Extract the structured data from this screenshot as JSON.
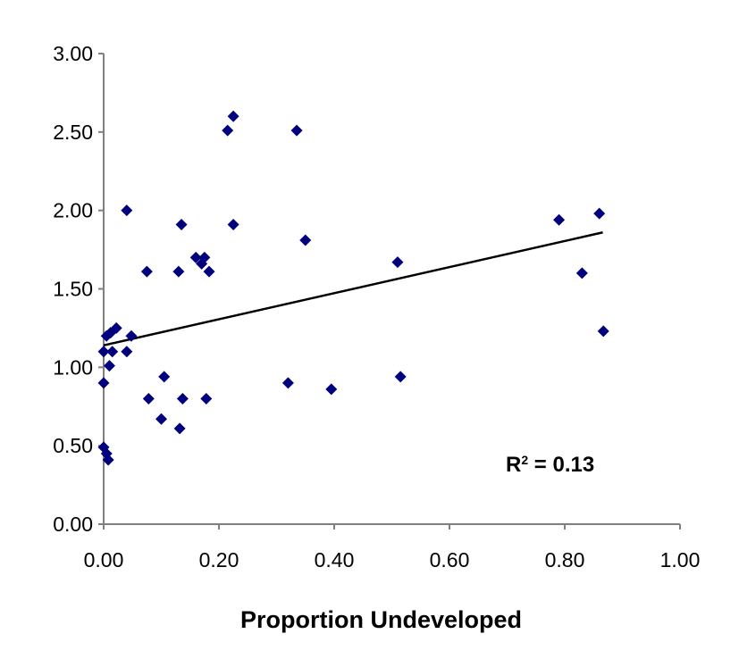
{
  "chart_data": {
    "type": "scatter",
    "title": "",
    "xlabel": "Proportion Undeveloped",
    "ylabel": "",
    "xlim": [
      0,
      1
    ],
    "ylim": [
      0,
      3
    ],
    "xticks": [
      "0.00",
      "0.20",
      "0.40",
      "0.60",
      "0.80",
      "1.00"
    ],
    "yticks": [
      "0.00",
      "0.50",
      "1.00",
      "1.50",
      "2.00",
      "2.50",
      "3.00"
    ],
    "grid": false,
    "marker_color": "#00007F",
    "points": [
      {
        "x": 0.0,
        "y": 1.1
      },
      {
        "x": 0.0,
        "y": 0.9
      },
      {
        "x": 0.0,
        "y": 0.49
      },
      {
        "x": 0.005,
        "y": 0.45
      },
      {
        "x": 0.008,
        "y": 0.41
      },
      {
        "x": 0.005,
        "y": 1.2
      },
      {
        "x": 0.01,
        "y": 1.01
      },
      {
        "x": 0.012,
        "y": 1.22
      },
      {
        "x": 0.015,
        "y": 1.1
      },
      {
        "x": 0.022,
        "y": 1.25
      },
      {
        "x": 0.04,
        "y": 1.1
      },
      {
        "x": 0.04,
        "y": 2.0
      },
      {
        "x": 0.048,
        "y": 1.2
      },
      {
        "x": 0.075,
        "y": 1.61
      },
      {
        "x": 0.078,
        "y": 0.8
      },
      {
        "x": 0.1,
        "y": 0.67
      },
      {
        "x": 0.105,
        "y": 0.94
      },
      {
        "x": 0.13,
        "y": 1.61
      },
      {
        "x": 0.132,
        "y": 0.61
      },
      {
        "x": 0.135,
        "y": 1.91
      },
      {
        "x": 0.137,
        "y": 0.8
      },
      {
        "x": 0.16,
        "y": 1.7
      },
      {
        "x": 0.17,
        "y": 1.66
      },
      {
        "x": 0.175,
        "y": 1.7
      },
      {
        "x": 0.178,
        "y": 0.8
      },
      {
        "x": 0.183,
        "y": 1.61
      },
      {
        "x": 0.215,
        "y": 2.51
      },
      {
        "x": 0.225,
        "y": 2.6
      },
      {
        "x": 0.225,
        "y": 1.91
      },
      {
        "x": 0.32,
        "y": 0.9
      },
      {
        "x": 0.335,
        "y": 2.51
      },
      {
        "x": 0.35,
        "y": 1.81
      },
      {
        "x": 0.395,
        "y": 0.86
      },
      {
        "x": 0.51,
        "y": 1.67
      },
      {
        "x": 0.515,
        "y": 0.94
      },
      {
        "x": 0.79,
        "y": 1.94
      },
      {
        "x": 0.83,
        "y": 1.6
      },
      {
        "x": 0.86,
        "y": 1.98
      },
      {
        "x": 0.867,
        "y": 1.23
      }
    ],
    "trendline": {
      "type": "linear",
      "x": [
        0.0,
        0.866
      ],
      "y": [
        1.14,
        1.86
      ]
    },
    "annotation": {
      "text": "R",
      "sup": "2",
      "rest": " = 0.13"
    }
  }
}
